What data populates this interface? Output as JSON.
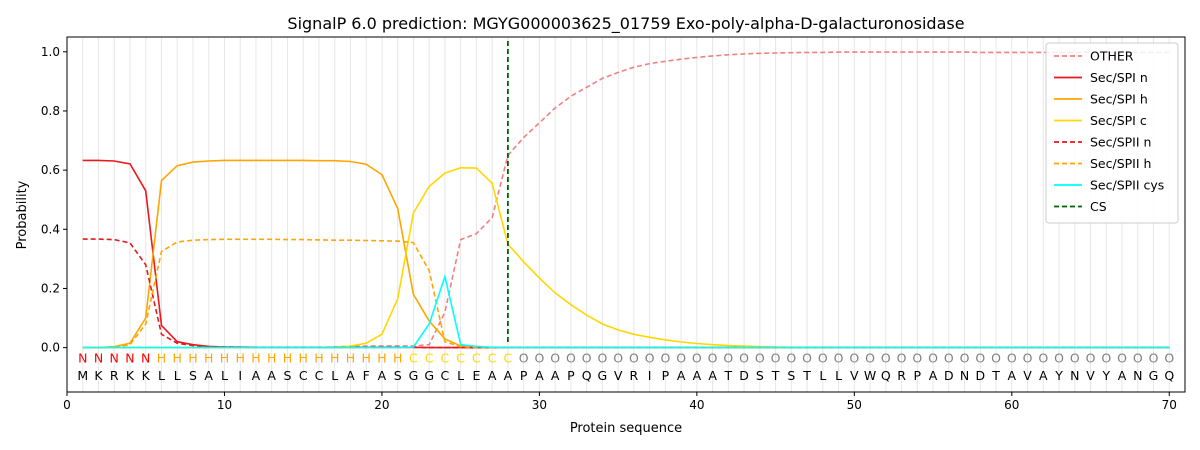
{
  "chart_data": {
    "type": "line",
    "title": "SignalP 6.0 prediction: MGYG000003625_01759 Exo-poly-alpha-D-galacturonosidase",
    "xlabel": "Protein sequence",
    "ylabel": "Probability",
    "xlim": [
      0,
      71
    ],
    "ylim": [
      -0.15,
      1.05
    ],
    "x_ticks": [
      0,
      10,
      20,
      30,
      40,
      50,
      60,
      70
    ],
    "y_ticks": [
      0.0,
      0.2,
      0.4,
      0.6,
      0.8,
      1.0
    ],
    "x_tick_labels": [
      "0",
      "10",
      "20",
      "30",
      "40",
      "50",
      "60",
      "70"
    ],
    "y_tick_labels": [
      "0.0",
      "0.2",
      "0.4",
      "0.6",
      "0.8",
      "1.0"
    ],
    "grid": "vertical lines at each residue",
    "legend_position": "top-right",
    "sequence": [
      "M",
      "K",
      "R",
      "K",
      "K",
      "L",
      "L",
      "S",
      "A",
      "L",
      "I",
      "A",
      "A",
      "S",
      "C",
      "C",
      "L",
      "A",
      "F",
      "A",
      "S",
      "G",
      "G",
      "C",
      "L",
      "E",
      "A",
      "A",
      "P",
      "A",
      "A",
      "P",
      "Q",
      "G",
      "V",
      "R",
      "I",
      "P",
      "A",
      "A",
      "A",
      "T",
      "D",
      "S",
      "T",
      "S",
      "T",
      "L",
      "L",
      "V",
      "W",
      "Q",
      "R",
      "P",
      "A",
      "D",
      "N",
      "D",
      "T",
      "A",
      "V",
      "A",
      "Y",
      "N",
      "V",
      "Y",
      "A",
      "N",
      "G",
      "Q"
    ],
    "labels": [
      "N",
      "N",
      "N",
      "N",
      "N",
      "H",
      "H",
      "H",
      "H",
      "H",
      "H",
      "H",
      "H",
      "H",
      "H",
      "H",
      "H",
      "H",
      "H",
      "H",
      "H",
      "C",
      "C",
      "C",
      "C",
      "C",
      "C",
      "C",
      "O",
      "O",
      "O",
      "O",
      "O",
      "O",
      "O",
      "O",
      "O",
      "O",
      "O",
      "O",
      "O",
      "O",
      "O",
      "O",
      "O",
      "O",
      "O",
      "O",
      "O",
      "O",
      "O",
      "O",
      "O",
      "O",
      "O",
      "O",
      "O",
      "O",
      "O",
      "O",
      "O",
      "O",
      "O",
      "O",
      "O",
      "O",
      "O",
      "O",
      "O",
      "O"
    ],
    "label_colors": {
      "N": "#ff0000",
      "H": "#ffa500",
      "C": "#ffd700",
      "O": "#808080"
    },
    "series": [
      {
        "name": "OTHER",
        "color": "#f08080",
        "dash": true,
        "values": [
          0,
          0,
          0,
          0,
          0,
          0,
          0,
          0,
          0,
          0,
          0,
          0,
          0,
          0,
          0,
          0,
          0.002,
          0.004,
          0.005,
          0.006,
          0.006,
          0.006,
          0.01,
          0.12,
          0.365,
          0.385,
          0.44,
          0.65,
          0.71,
          0.76,
          0.81,
          0.85,
          0.88,
          0.91,
          0.93,
          0.948,
          0.96,
          0.968,
          0.975,
          0.981,
          0.986,
          0.99,
          0.993,
          0.995,
          0.996,
          0.997,
          0.998,
          0.998,
          0.999,
          0.999,
          0.999,
          0.999,
          0.999,
          0.999,
          0.999,
          0.999,
          0.999,
          0.998,
          0.998,
          0.998,
          0.998,
          0.998,
          0.998,
          0.998,
          0.998,
          0.998,
          0.998,
          0.998,
          0.998,
          0.998
        ]
      },
      {
        "name": "Sec/SPI n",
        "color": "#e8191c",
        "dash": false,
        "values": [
          0.633,
          0.633,
          0.631,
          0.621,
          0.53,
          0.075,
          0.02,
          0.01,
          0.004,
          0.002,
          0.002,
          0.001,
          0.001,
          0.001,
          0.001,
          0.001,
          0.001,
          0.001,
          0.001,
          0.001,
          0.001,
          0.001,
          0,
          0,
          0,
          0,
          0,
          0,
          0,
          0,
          0,
          0,
          0,
          0,
          0,
          0,
          0,
          0,
          0,
          0,
          0,
          0,
          0,
          0,
          0,
          0,
          0,
          0,
          0,
          0,
          0,
          0,
          0,
          0,
          0,
          0,
          0,
          0,
          0,
          0,
          0,
          0,
          0,
          0,
          0,
          0,
          0,
          0,
          0,
          0
        ]
      },
      {
        "name": "Sec/SPI h",
        "color": "#ffa500",
        "dash": false,
        "values": [
          0,
          0,
          0.003,
          0.015,
          0.1,
          0.565,
          0.615,
          0.627,
          0.631,
          0.633,
          0.633,
          0.633,
          0.633,
          0.633,
          0.633,
          0.632,
          0.632,
          0.629,
          0.62,
          0.585,
          0.47,
          0.18,
          0.09,
          0.03,
          0.005,
          0.001,
          0,
          0,
          0,
          0,
          0,
          0,
          0,
          0,
          0,
          0,
          0,
          0,
          0,
          0,
          0,
          0,
          0,
          0,
          0,
          0,
          0,
          0,
          0,
          0,
          0,
          0,
          0,
          0,
          0,
          0,
          0,
          0,
          0,
          0,
          0,
          0,
          0,
          0,
          0,
          0,
          0,
          0,
          0,
          0
        ]
      },
      {
        "name": "Sec/SPI c",
        "color": "#ffd700",
        "dash": false,
        "values": [
          0,
          0,
          0,
          0,
          0,
          0,
          0,
          0,
          0,
          0,
          0,
          0,
          0,
          0,
          0,
          0,
          0.002,
          0.005,
          0.015,
          0.045,
          0.165,
          0.455,
          0.545,
          0.59,
          0.608,
          0.607,
          0.555,
          0.35,
          0.29,
          0.235,
          0.185,
          0.145,
          0.11,
          0.08,
          0.06,
          0.045,
          0.035,
          0.026,
          0.019,
          0.014,
          0.01,
          0.007,
          0.005,
          0.003,
          0.002,
          0.001,
          0.001,
          0,
          0,
          0,
          0,
          0,
          0,
          0,
          0,
          0,
          0,
          0,
          0,
          0,
          0,
          0,
          0,
          0,
          0,
          0,
          0,
          0,
          0,
          0
        ]
      },
      {
        "name": "Sec/SPII n",
        "color": "#e8191c",
        "dash": true,
        "values": [
          0.367,
          0.367,
          0.365,
          0.354,
          0.28,
          0.045,
          0.015,
          0.007,
          0.003,
          0.002,
          0.001,
          0.001,
          0.001,
          0.001,
          0.001,
          0.001,
          0.001,
          0.001,
          0.001,
          0.001,
          0.001,
          0.001,
          0,
          0,
          0,
          0,
          0,
          0,
          0,
          0,
          0,
          0,
          0,
          0,
          0,
          0,
          0,
          0,
          0,
          0,
          0,
          0,
          0,
          0,
          0,
          0,
          0,
          0,
          0,
          0,
          0,
          0,
          0,
          0,
          0,
          0,
          0,
          0,
          0,
          0,
          0,
          0,
          0,
          0,
          0,
          0,
          0,
          0,
          0,
          0
        ]
      },
      {
        "name": "Sec/SPII h",
        "color": "#ffa500",
        "dash": true,
        "values": [
          0,
          0,
          0.002,
          0.01,
          0.08,
          0.325,
          0.357,
          0.363,
          0.365,
          0.366,
          0.366,
          0.366,
          0.366,
          0.365,
          0.365,
          0.364,
          0.363,
          0.363,
          0.362,
          0.361,
          0.36,
          0.355,
          0.26,
          0.02,
          0.003,
          0.001,
          0,
          0,
          0,
          0,
          0,
          0,
          0,
          0,
          0,
          0,
          0,
          0,
          0,
          0,
          0,
          0,
          0,
          0,
          0,
          0,
          0,
          0,
          0,
          0,
          0,
          0,
          0,
          0,
          0,
          0,
          0,
          0,
          0,
          0,
          0,
          0,
          0,
          0,
          0,
          0,
          0,
          0,
          0,
          0
        ]
      },
      {
        "name": "Sec/SPII cys",
        "color": "#00ffff",
        "dash": false,
        "values": [
          0,
          0,
          0,
          0,
          0,
          0,
          0,
          0,
          0,
          0,
          0,
          0,
          0,
          0,
          0,
          0,
          0,
          0,
          0,
          0,
          0,
          0.002,
          0.08,
          0.24,
          0.01,
          0.004,
          0.001,
          0,
          0,
          0,
          0,
          0,
          0,
          0,
          0,
          0,
          0,
          0,
          0,
          0,
          0,
          0,
          0,
          0,
          0,
          0,
          0,
          0,
          0,
          0,
          0,
          0,
          0,
          0,
          0,
          0,
          0,
          0,
          0,
          0,
          0,
          0,
          0,
          0,
          0,
          0,
          0,
          0,
          0,
          0
        ]
      },
      {
        "name": "CS",
        "color": "#006400",
        "dash": true,
        "vertical_at": 28
      }
    ]
  }
}
